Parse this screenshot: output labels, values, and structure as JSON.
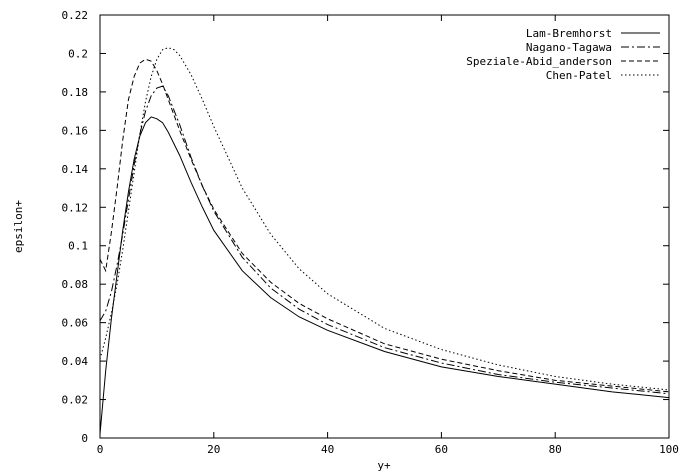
{
  "chart_data": {
    "type": "line",
    "xlabel": "y+",
    "ylabel": "epsilon+",
    "xlim": [
      0,
      100
    ],
    "ylim": [
      0,
      0.22
    ],
    "xticks": [
      0,
      20,
      40,
      60,
      80,
      100
    ],
    "xtick_labels": [
      "0",
      "20",
      "40",
      "60",
      "80",
      "100"
    ],
    "yticks": [
      0,
      0.02,
      0.04,
      0.06,
      0.08,
      0.1,
      0.12,
      0.14,
      0.16,
      0.18,
      0.2,
      0.22
    ],
    "ytick_labels": [
      "0",
      "0.02",
      "0.04",
      "0.06",
      "0.08",
      "0.1",
      "0.12",
      "0.14",
      "0.16",
      "0.18",
      "0.2",
      "0.22"
    ],
    "grid": false,
    "legend_position": "top-right",
    "series": [
      {
        "name": "Lam-Bremhorst",
        "dash": "solid",
        "x": [
          0,
          1,
          2,
          3,
          4,
          5,
          6,
          7,
          8,
          9,
          10,
          11,
          12,
          14,
          16,
          18,
          20,
          25,
          30,
          35,
          40,
          50,
          60,
          70,
          80,
          90,
          100
        ],
        "y": [
          0.002,
          0.035,
          0.062,
          0.085,
          0.108,
          0.128,
          0.145,
          0.157,
          0.164,
          0.167,
          0.166,
          0.164,
          0.159,
          0.147,
          0.133,
          0.12,
          0.108,
          0.087,
          0.073,
          0.063,
          0.056,
          0.045,
          0.037,
          0.032,
          0.028,
          0.024,
          0.021
        ]
      },
      {
        "name": "Nagano-Tagawa",
        "dash": "dashdot",
        "x": [
          0,
          1,
          2,
          3,
          4,
          5,
          6,
          7,
          8,
          9,
          10,
          11,
          12,
          14,
          16,
          18,
          20,
          25,
          30,
          35,
          40,
          50,
          60,
          70,
          80,
          90,
          100
        ],
        "y": [
          0.061,
          0.066,
          0.076,
          0.09,
          0.106,
          0.124,
          0.142,
          0.158,
          0.17,
          0.178,
          0.182,
          0.183,
          0.178,
          0.163,
          0.146,
          0.131,
          0.118,
          0.094,
          0.078,
          0.067,
          0.059,
          0.047,
          0.039,
          0.033,
          0.029,
          0.026,
          0.023
        ]
      },
      {
        "name": "Speziale-Abid_anderson",
        "dash": "dashed",
        "x": [
          0,
          1,
          2,
          3,
          4,
          5,
          6,
          7,
          8,
          9,
          10,
          11,
          12,
          14,
          16,
          18,
          20,
          25,
          30,
          35,
          40,
          50,
          60,
          70,
          80,
          90,
          100
        ],
        "y": [
          0.093,
          0.087,
          0.107,
          0.13,
          0.155,
          0.176,
          0.188,
          0.195,
          0.197,
          0.196,
          0.191,
          0.184,
          0.176,
          0.16,
          0.145,
          0.131,
          0.119,
          0.096,
          0.081,
          0.07,
          0.062,
          0.049,
          0.041,
          0.035,
          0.03,
          0.027,
          0.024
        ]
      },
      {
        "name": "Chen-Patel",
        "dash": "dotted",
        "x": [
          0,
          1,
          2,
          3,
          4,
          5,
          6,
          7,
          8,
          9,
          10,
          11,
          12,
          13,
          14,
          16,
          18,
          20,
          25,
          30,
          35,
          40,
          50,
          60,
          70,
          80,
          90,
          100
        ],
        "y": [
          0.041,
          0.052,
          0.065,
          0.08,
          0.098,
          0.118,
          0.138,
          0.158,
          0.175,
          0.188,
          0.197,
          0.202,
          0.203,
          0.202,
          0.199,
          0.189,
          0.176,
          0.162,
          0.13,
          0.106,
          0.088,
          0.075,
          0.057,
          0.046,
          0.038,
          0.032,
          0.028,
          0.025
        ]
      }
    ]
  }
}
